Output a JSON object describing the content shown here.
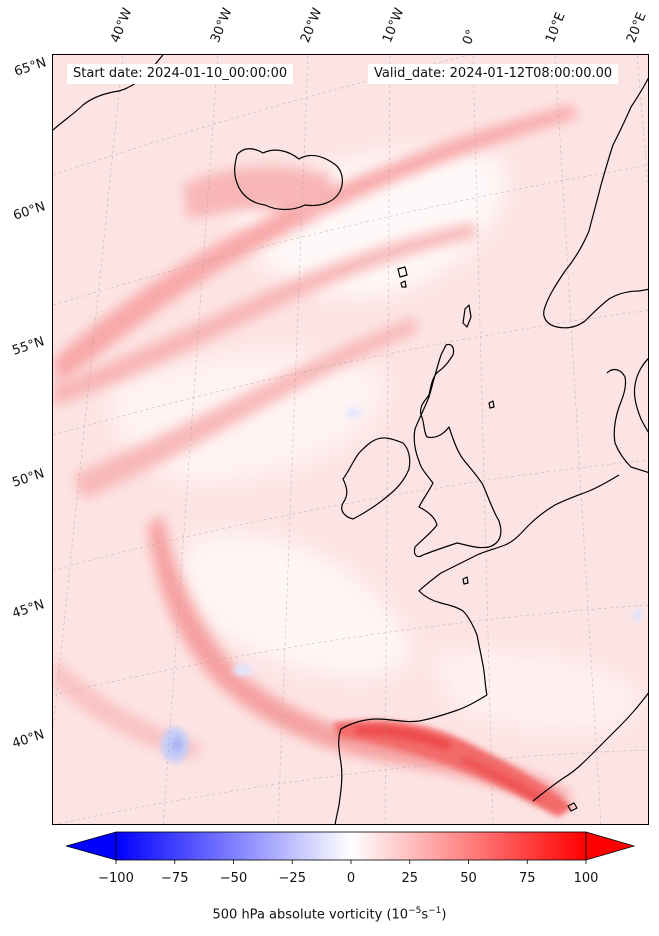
{
  "header": {
    "start_label": "Start date: 2024-01-10_00:00:00",
    "valid_label": "Valid_date: 2024-01-12T08:00:00.00"
  },
  "map": {
    "projection": "lambert-conformal",
    "field": "500 hPa absolute vorticity",
    "lon_labels": [
      "40°W",
      "30°W",
      "20°W",
      "10°W",
      "0°",
      "10°E",
      "20°E"
    ],
    "lat_labels": [
      "65°N",
      "60°N",
      "55°N",
      "50°N",
      "45°N",
      "40°N"
    ],
    "gridlines": true,
    "coastlines": true,
    "ocean_color": "#fde4e4",
    "features": [
      "jet-band-iceland",
      "jet-band-atlantic-mid",
      "jet-band-atlantic-south",
      "vorticity-max-iberia",
      "negative-vorticity-patch-sw"
    ]
  },
  "colorbar": {
    "colormap": "bwr",
    "min_color": "#0000ff",
    "mid_color": "#ffffff",
    "max_color": "#ff0000",
    "ticks": [
      "−100",
      "−75",
      "−50",
      "−25",
      "0",
      "25",
      "50",
      "75",
      "100"
    ],
    "tick_values": [
      -100,
      -75,
      -50,
      -25,
      0,
      25,
      50,
      75,
      100
    ],
    "range": [
      -100,
      100
    ],
    "extend": "both",
    "label": "500 hPa absolute vorticity (10",
    "label_exp1": "−5",
    "label_mid": "s",
    "label_exp2": "−1",
    "label_end": ")"
  }
}
